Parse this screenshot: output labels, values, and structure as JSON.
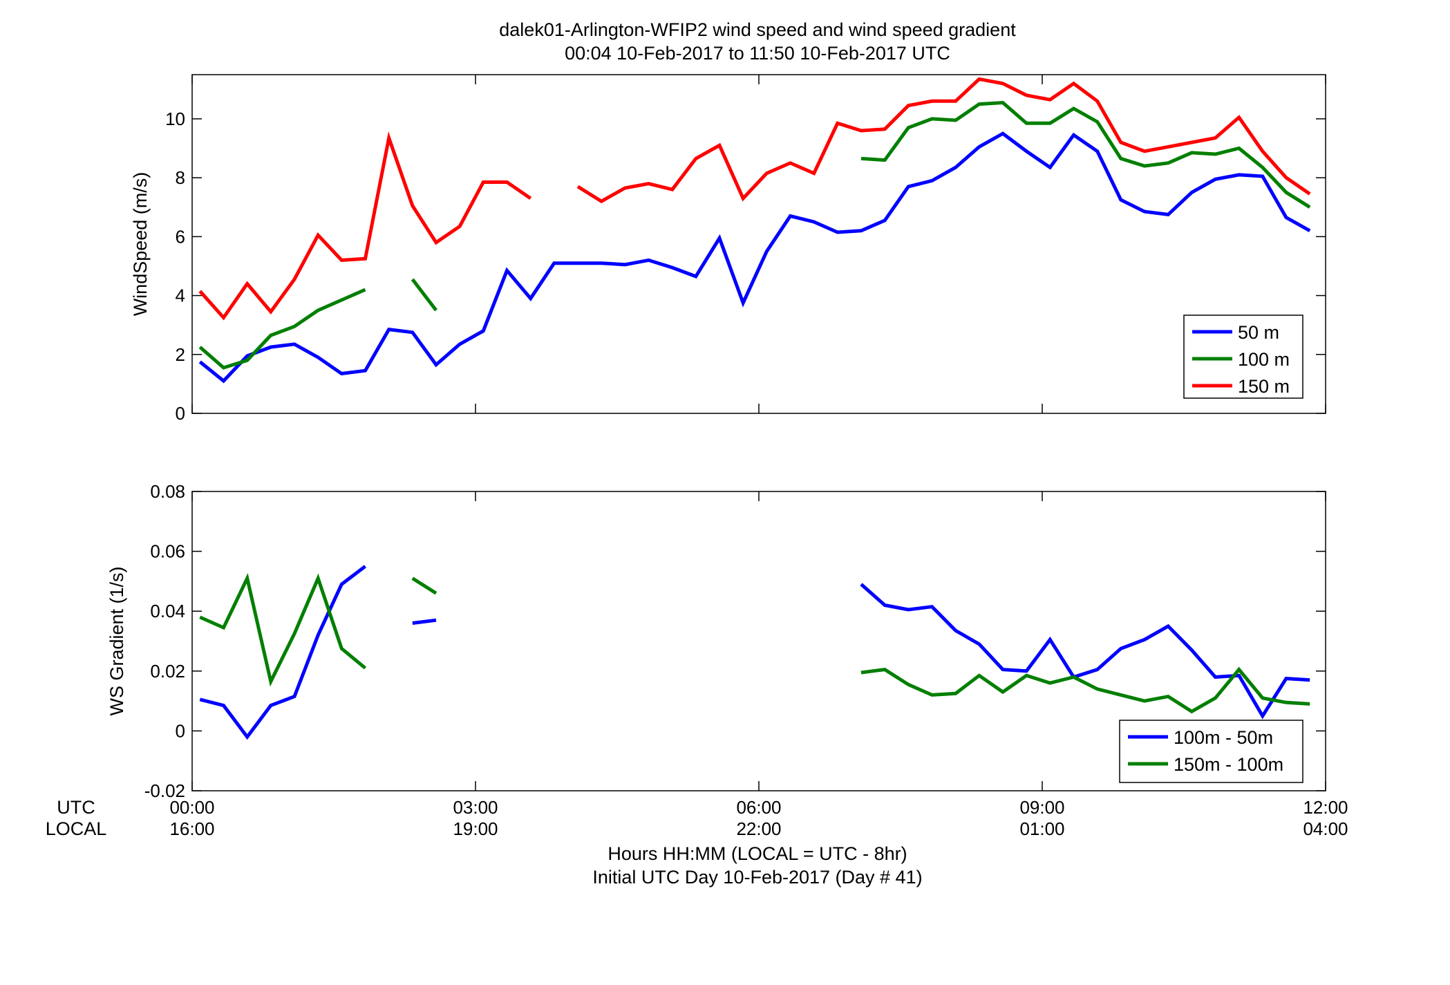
{
  "figure": {
    "title_line1": "dalek01-Arlington-WFIP2  wind speed and wind speed gradient",
    "title_line2": "00:04 10-Feb-2017 to 11:50 10-Feb-2017  UTC",
    "x_row_label_utc": "UTC",
    "x_row_label_local": "LOCAL",
    "xlabel_line1": "Hours HH:MM  (LOCAL = UTC - 8hr)",
    "xlabel_line2": "Initial UTC Day 10-Feb-2017 (Day # 41)",
    "utc_ticks": [
      "00:00",
      "03:00",
      "06:00",
      "09:00",
      "12:00"
    ],
    "local_ticks": [
      "16:00",
      "19:00",
      "22:00",
      "01:00",
      "04:00"
    ]
  },
  "colors": {
    "blue": "#0000ff",
    "green": "#007f00",
    "red": "#ff0000",
    "axes": "#000000"
  },
  "chart_data": [
    {
      "type": "line",
      "name": "wind-speed",
      "ylabel": "WindSpeed (m/s)",
      "xlim": [
        0,
        12
      ],
      "ylim": [
        0,
        11.5
      ],
      "yticks": [
        0,
        2,
        4,
        6,
        8,
        10
      ],
      "ytick_labels": [
        "0",
        "2",
        "4",
        "6",
        "8",
        "10"
      ],
      "xticks": [
        0,
        3,
        6,
        9,
        12
      ],
      "legend_position": "bottom-right",
      "x": [
        0.083,
        0.333,
        0.583,
        0.833,
        1.083,
        1.333,
        1.583,
        1.833,
        2.083,
        2.333,
        2.583,
        2.833,
        3.083,
        3.333,
        3.583,
        3.833,
        4.083,
        4.333,
        4.583,
        4.833,
        5.083,
        5.333,
        5.583,
        5.833,
        6.083,
        6.333,
        6.583,
        6.833,
        7.083,
        7.333,
        7.583,
        7.833,
        8.083,
        8.333,
        8.583,
        8.833,
        9.083,
        9.333,
        9.583,
        9.833,
        10.083,
        10.333,
        10.583,
        10.833,
        11.083,
        11.333,
        11.583,
        11.833
      ],
      "series": [
        {
          "name": "50 m",
          "color": "#0000ff",
          "values": [
            1.75,
            1.1,
            1.95,
            2.25,
            2.35,
            1.9,
            1.35,
            1.45,
            2.85,
            2.75,
            1.65,
            2.35,
            2.8,
            4.85,
            3.9,
            5.1,
            5.1,
            5.1,
            5.05,
            5.2,
            4.95,
            4.65,
            5.95,
            3.75,
            5.5,
            6.7,
            6.5,
            6.15,
            6.2,
            6.55,
            7.7,
            7.9,
            8.35,
            9.05,
            9.5,
            8.9,
            8.35,
            9.45,
            8.9,
            7.25,
            6.85,
            6.75,
            7.5,
            7.95,
            8.1,
            8.05,
            6.65,
            6.2
          ]
        },
        {
          "name": "100 m",
          "color": "#007f00",
          "values": [
            2.25,
            1.55,
            1.8,
            2.65,
            2.95,
            3.5,
            3.85,
            4.2,
            null,
            4.55,
            3.5,
            null,
            null,
            null,
            null,
            null,
            null,
            null,
            null,
            null,
            null,
            null,
            null,
            null,
            null,
            null,
            null,
            null,
            8.65,
            8.6,
            9.7,
            10.0,
            9.95,
            10.5,
            10.55,
            9.85,
            9.85,
            10.35,
            9.9,
            8.65,
            8.4,
            8.5,
            8.85,
            8.8,
            9.0,
            8.35,
            7.5,
            7.0
          ]
        },
        {
          "name": "150 m",
          "color": "#ff0000",
          "values": [
            4.15,
            3.25,
            4.4,
            3.45,
            4.55,
            6.05,
            5.2,
            5.25,
            9.35,
            7.05,
            5.8,
            6.35,
            7.85,
            7.85,
            7.3,
            null,
            7.7,
            7.2,
            7.65,
            7.8,
            7.6,
            8.65,
            9.1,
            7.3,
            8.15,
            8.5,
            8.15,
            9.85,
            9.6,
            9.65,
            10.45,
            10.6,
            10.6,
            11.35,
            11.2,
            10.8,
            10.65,
            11.2,
            10.6,
            9.2,
            8.9,
            9.05,
            9.2,
            9.35,
            10.05,
            8.9,
            8.0,
            7.45
          ]
        }
      ]
    },
    {
      "type": "line",
      "name": "ws-gradient",
      "ylabel": "WS Gradient (1/s)",
      "xlim": [
        0,
        12
      ],
      "ylim": [
        -0.02,
        0.08
      ],
      "yticks": [
        -0.02,
        0,
        0.02,
        0.04,
        0.06,
        0.08
      ],
      "ytick_labels": [
        "-0.02",
        "0",
        "0.02",
        "0.04",
        "0.06",
        "0.08"
      ],
      "xticks": [
        0,
        3,
        6,
        9,
        12
      ],
      "legend_position": "bottom-right",
      "x": [
        0.083,
        0.333,
        0.583,
        0.833,
        1.083,
        1.333,
        1.583,
        1.833,
        2.083,
        2.333,
        2.583,
        2.833,
        3.083,
        3.333,
        3.583,
        3.833,
        4.083,
        4.333,
        4.583,
        4.833,
        5.083,
        5.333,
        5.583,
        5.833,
        6.083,
        6.333,
        6.583,
        6.833,
        7.083,
        7.333,
        7.583,
        7.833,
        8.083,
        8.333,
        8.583,
        8.833,
        9.083,
        9.333,
        9.583,
        9.833,
        10.083,
        10.333,
        10.583,
        10.833,
        11.083,
        11.333,
        11.583,
        11.833
      ],
      "series": [
        {
          "name": "100m - 50m",
          "color": "#0000ff",
          "values": [
            0.0105,
            0.0085,
            -0.002,
            0.0085,
            0.0115,
            0.032,
            0.049,
            0.055,
            null,
            0.036,
            0.037,
            null,
            null,
            null,
            null,
            null,
            null,
            null,
            null,
            null,
            null,
            null,
            null,
            null,
            null,
            null,
            null,
            null,
            0.049,
            0.042,
            0.0405,
            0.0415,
            0.0335,
            0.029,
            0.0205,
            0.02,
            0.0305,
            0.018,
            0.0205,
            0.0275,
            0.0305,
            0.035,
            0.027,
            0.018,
            0.0185,
            0.005,
            0.0175,
            0.017
          ]
        },
        {
          "name": "150m - 100m",
          "color": "#007f00",
          "values": [
            0.038,
            0.0345,
            0.051,
            0.0165,
            0.0325,
            0.051,
            0.0275,
            0.021,
            null,
            0.051,
            0.046,
            null,
            null,
            null,
            null,
            null,
            null,
            null,
            null,
            null,
            null,
            null,
            null,
            null,
            null,
            null,
            null,
            null,
            0.0195,
            0.0205,
            0.0155,
            0.012,
            0.0125,
            0.0185,
            0.013,
            0.0185,
            0.016,
            0.018,
            0.014,
            0.012,
            0.01,
            0.0115,
            0.0065,
            0.011,
            0.0205,
            0.011,
            0.0095,
            0.009
          ]
        }
      ]
    }
  ]
}
